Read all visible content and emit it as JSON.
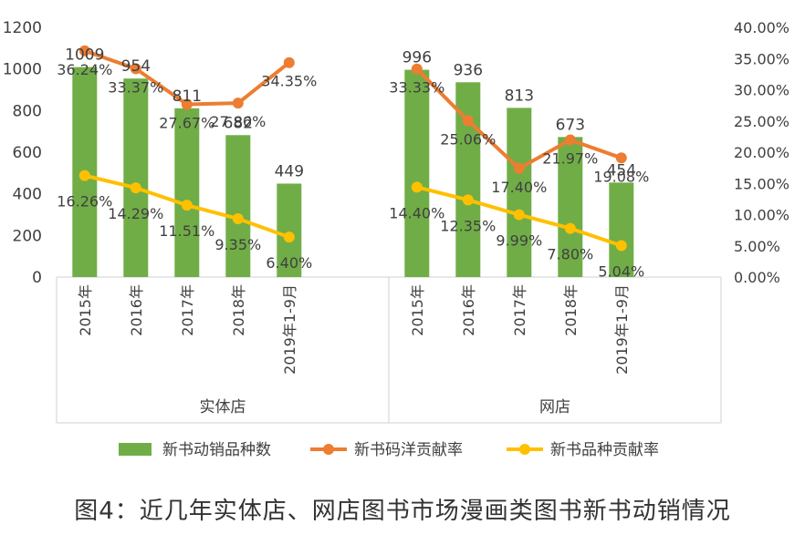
{
  "caption": "图4：近几年实体店、网店图书市场漫画类图书新书动销情况",
  "colors": {
    "bars": "#70AD47",
    "line_price": "#ED7D31",
    "line_variety": "#FFC000",
    "grid": "#D9D9D9",
    "text": "#404040"
  },
  "chart_data": {
    "type": "bar",
    "groups": [
      "实体店",
      "网店"
    ],
    "categories": [
      "2015年",
      "2016年",
      "2017年",
      "2018年",
      "2019年1-9月"
    ],
    "y_left_ticks": [
      "0",
      "200",
      "400",
      "600",
      "800",
      "1000",
      "1200"
    ],
    "y_right_ticks": [
      "0.00%",
      "5.00%",
      "10.00%",
      "15.00%",
      "20.00%",
      "25.00%",
      "30.00%",
      "35.00%",
      "40.00%"
    ],
    "ylim_left": [
      0,
      1200
    ],
    "ylim_right": [
      0,
      40
    ],
    "series": [
      {
        "name": "新书动销品种数",
        "type": "bar",
        "axis": "left",
        "values": [
          [
            1009,
            954,
            811,
            682,
            449
          ],
          [
            996,
            936,
            813,
            673,
            454
          ]
        ],
        "labels": [
          [
            "1009",
            "954",
            "811",
            "682",
            "449"
          ],
          [
            "996",
            "936",
            "813",
            "673",
            "454"
          ]
        ]
      },
      {
        "name": "新书码洋贡献率",
        "type": "line",
        "axis": "right",
        "values": [
          [
            36.24,
            33.37,
            27.67,
            27.86,
            34.35
          ],
          [
            33.33,
            25.06,
            17.4,
            21.97,
            19.08
          ]
        ],
        "labels": [
          [
            "36.24%",
            "33.37%",
            "27.67%",
            "27.86%",
            "34.35%"
          ],
          [
            "33.33%",
            "25.06%",
            "17.40%",
            "21.97%",
            "19.08%"
          ]
        ]
      },
      {
        "name": "新书品种贡献率",
        "type": "line",
        "axis": "right",
        "values": [
          [
            16.26,
            14.29,
            11.51,
            9.35,
            6.4
          ],
          [
            14.4,
            12.35,
            9.99,
            7.8,
            5.04
          ]
        ],
        "labels": [
          [
            "16.26%",
            "14.29%",
            "11.51%",
            "9.35%",
            "6.40%"
          ],
          [
            "14.40%",
            "12.35%",
            "9.99%",
            "7.80%",
            "5.04%"
          ]
        ]
      }
    ]
  }
}
